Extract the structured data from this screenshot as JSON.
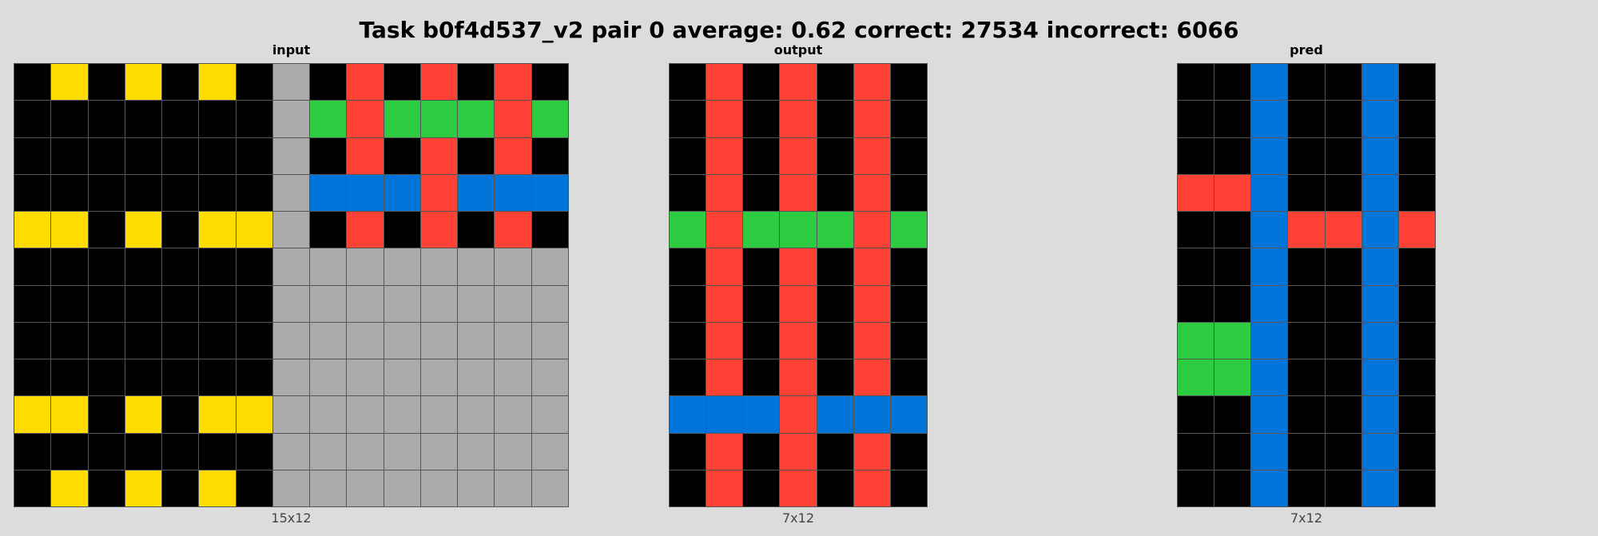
{
  "title": "Task b0f4d537_v2 pair 0 average: 0.62 correct: 27534 incorrect: 6066",
  "palette": {
    "0": "#000000",
    "1": "#0074d9",
    "2": "#ff4136",
    "3": "#2ecc40",
    "4": "#ffdc00",
    "5": "#aaaaaa"
  },
  "panels": [
    {
      "key": "input",
      "label": "input",
      "dims": "15x12",
      "cols": 15,
      "rows": [
        [
          0,
          4,
          0,
          4,
          0,
          4,
          0,
          5,
          0,
          2,
          0,
          2,
          0,
          2,
          0
        ],
        [
          0,
          0,
          0,
          0,
          0,
          0,
          0,
          5,
          3,
          2,
          3,
          3,
          3,
          2,
          3
        ],
        [
          0,
          0,
          0,
          0,
          0,
          0,
          0,
          5,
          0,
          2,
          0,
          2,
          0,
          2,
          0
        ],
        [
          0,
          0,
          0,
          0,
          0,
          0,
          0,
          5,
          1,
          1,
          1,
          2,
          1,
          1,
          1
        ],
        [
          4,
          4,
          0,
          4,
          0,
          4,
          4,
          5,
          0,
          2,
          0,
          2,
          0,
          2,
          0
        ],
        [
          0,
          0,
          0,
          0,
          0,
          0,
          0,
          5,
          5,
          5,
          5,
          5,
          5,
          5,
          5
        ],
        [
          0,
          0,
          0,
          0,
          0,
          0,
          0,
          5,
          5,
          5,
          5,
          5,
          5,
          5,
          5
        ],
        [
          0,
          0,
          0,
          0,
          0,
          0,
          0,
          5,
          5,
          5,
          5,
          5,
          5,
          5,
          5
        ],
        [
          0,
          0,
          0,
          0,
          0,
          0,
          0,
          5,
          5,
          5,
          5,
          5,
          5,
          5,
          5
        ],
        [
          4,
          4,
          0,
          4,
          0,
          4,
          4,
          5,
          5,
          5,
          5,
          5,
          5,
          5,
          5
        ],
        [
          0,
          0,
          0,
          0,
          0,
          0,
          0,
          5,
          5,
          5,
          5,
          5,
          5,
          5,
          5
        ],
        [
          0,
          4,
          0,
          4,
          0,
          4,
          0,
          5,
          5,
          5,
          5,
          5,
          5,
          5,
          5
        ]
      ]
    },
    {
      "key": "output",
      "label": "output",
      "dims": "7x12",
      "cols": 7,
      "rows": [
        [
          0,
          2,
          0,
          2,
          0,
          2,
          0
        ],
        [
          0,
          2,
          0,
          2,
          0,
          2,
          0
        ],
        [
          0,
          2,
          0,
          2,
          0,
          2,
          0
        ],
        [
          0,
          2,
          0,
          2,
          0,
          2,
          0
        ],
        [
          3,
          2,
          3,
          3,
          3,
          2,
          3
        ],
        [
          0,
          2,
          0,
          2,
          0,
          2,
          0
        ],
        [
          0,
          2,
          0,
          2,
          0,
          2,
          0
        ],
        [
          0,
          2,
          0,
          2,
          0,
          2,
          0
        ],
        [
          0,
          2,
          0,
          2,
          0,
          2,
          0
        ],
        [
          1,
          1,
          1,
          2,
          1,
          1,
          1
        ],
        [
          0,
          2,
          0,
          2,
          0,
          2,
          0
        ],
        [
          0,
          2,
          0,
          2,
          0,
          2,
          0
        ]
      ]
    },
    {
      "key": "pred",
      "label": "pred",
      "dims": "7x12",
      "cols": 7,
      "rows": [
        [
          0,
          0,
          1,
          0,
          0,
          1,
          0
        ],
        [
          0,
          0,
          1,
          0,
          0,
          1,
          0
        ],
        [
          0,
          0,
          1,
          0,
          0,
          1,
          0
        ],
        [
          2,
          2,
          1,
          0,
          0,
          1,
          0
        ],
        [
          0,
          0,
          1,
          2,
          2,
          1,
          2
        ],
        [
          0,
          0,
          1,
          0,
          0,
          1,
          0
        ],
        [
          0,
          0,
          1,
          0,
          0,
          1,
          0
        ],
        [
          3,
          3,
          1,
          0,
          0,
          1,
          0
        ],
        [
          3,
          3,
          1,
          0,
          0,
          1,
          0
        ],
        [
          0,
          0,
          1,
          0,
          0,
          1,
          0
        ],
        [
          0,
          0,
          1,
          0,
          0,
          1,
          0
        ],
        [
          0,
          0,
          1,
          0,
          0,
          1,
          0
        ]
      ]
    }
  ]
}
